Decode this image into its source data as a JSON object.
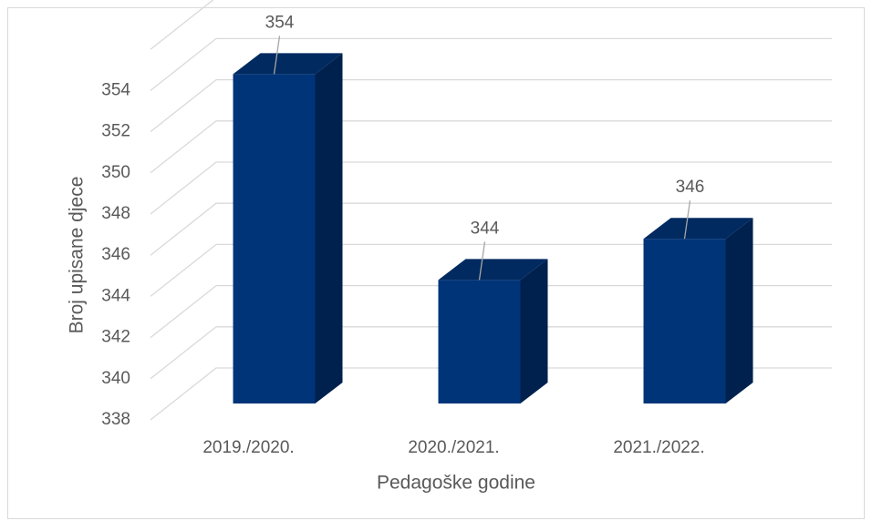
{
  "chart_data": {
    "type": "bar3d",
    "categories": [
      "2019./2020.",
      "2020./2021.",
      "2021./2022."
    ],
    "values": [
      354,
      344,
      346
    ],
    "color": "#003478",
    "ylim": [
      338,
      356
    ],
    "yticks": [
      338,
      340,
      342,
      344,
      346,
      348,
      350,
      352,
      354
    ],
    "grid": true,
    "x_label": "Pedagoške godine",
    "y_label": "Broj upisane djece"
  }
}
